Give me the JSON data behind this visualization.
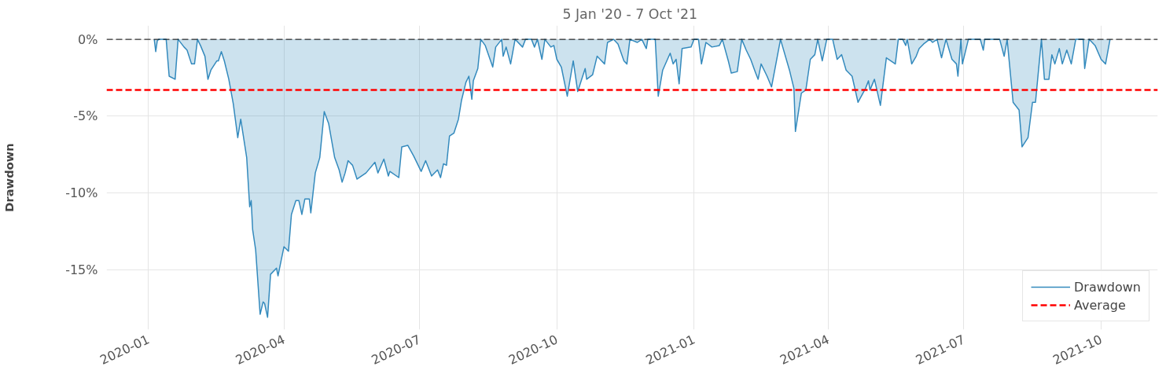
{
  "chart_data": {
    "type": "area",
    "title": "5 Jan '20 -  7 Oct '21",
    "ylabel": "Drawdown",
    "x": [
      "2020-01-05",
      "2020-01-06",
      "2020-01-07",
      "2020-01-08",
      "2020-01-13",
      "2020-01-15",
      "2020-01-19",
      "2020-01-21",
      "2020-01-25",
      "2020-01-27",
      "2020-01-30",
      "2020-02-01",
      "2020-02-03",
      "2020-02-05",
      "2020-02-08",
      "2020-02-10",
      "2020-02-12",
      "2020-02-16",
      "2020-02-17",
      "2020-02-19",
      "2020-02-21",
      "2020-02-24",
      "2020-02-27",
      "2020-03-01",
      "2020-03-03",
      "2020-03-07",
      "2020-03-09",
      "2020-03-10",
      "2020-03-11",
      "2020-03-13",
      "2020-03-16",
      "2020-03-18",
      "2020-03-19",
      "2020-03-21",
      "2020-03-23",
      "2020-03-27",
      "2020-03-28",
      "2020-04-01",
      "2020-04-04",
      "2020-04-06",
      "2020-04-09",
      "2020-04-11",
      "2020-04-13",
      "2020-04-15",
      "2020-04-18",
      "2020-04-19",
      "2020-04-22",
      "2020-04-25",
      "2020-04-28",
      "2020-05-01",
      "2020-05-05",
      "2020-05-08",
      "2020-05-10",
      "2020-05-12",
      "2020-05-14",
      "2020-05-17",
      "2020-05-20",
      "2020-05-26",
      "2020-06-01",
      "2020-06-03",
      "2020-06-07",
      "2020-06-10",
      "2020-06-11",
      "2020-06-17",
      "2020-06-19",
      "2020-06-23",
      "2020-06-27",
      "2020-07-02",
      "2020-07-05",
      "2020-07-09",
      "2020-07-13",
      "2020-07-15",
      "2020-07-17",
      "2020-07-19",
      "2020-07-21",
      "2020-07-24",
      "2020-07-27",
      "2020-07-29",
      "2020-08-01",
      "2020-08-03",
      "2020-08-05",
      "2020-08-06",
      "2020-08-09",
      "2020-08-11",
      "2020-08-14",
      "2020-08-19",
      "2020-08-21",
      "2020-08-25",
      "2020-08-26",
      "2020-08-28",
      "2020-08-31",
      "2020-09-03",
      "2020-09-08",
      "2020-09-10",
      "2020-09-14",
      "2020-09-16",
      "2020-09-18",
      "2020-09-21",
      "2020-09-23",
      "2020-09-27",
      "2020-09-29",
      "2020-10-01",
      "2020-10-04",
      "2020-10-08",
      "2020-10-12",
      "2020-10-15",
      "2020-10-20",
      "2020-10-21",
      "2020-10-25",
      "2020-10-28",
      "2020-11-02",
      "2020-11-04",
      "2020-11-08",
      "2020-11-11",
      "2020-11-15",
      "2020-11-17",
      "2020-11-19",
      "2020-11-24",
      "2020-11-27",
      "2020-11-30",
      "2020-12-01",
      "2020-12-06",
      "2020-12-08",
      "2020-12-11",
      "2020-12-16",
      "2020-12-18",
      "2020-12-20",
      "2020-12-22",
      "2020-12-24",
      "2020-12-30",
      "2021-01-01",
      "2021-01-04",
      "2021-01-06",
      "2021-01-09",
      "2021-01-13",
      "2021-01-18",
      "2021-01-20",
      "2021-01-24",
      "2021-01-26",
      "2021-01-30",
      "2021-02-02",
      "2021-02-05",
      "2021-02-08",
      "2021-02-11",
      "2021-02-13",
      "2021-02-15",
      "2021-02-19",
      "2021-02-22",
      "2021-02-28",
      "2021-03-06",
      "2021-03-09",
      "2021-03-10",
      "2021-03-14",
      "2021-03-17",
      "2021-03-20",
      "2021-03-23",
      "2021-03-25",
      "2021-03-28",
      "2021-03-31",
      "2021-04-04",
      "2021-04-07",
      "2021-04-10",
      "2021-04-13",
      "2021-04-17",
      "2021-04-21",
      "2021-04-26",
      "2021-04-28",
      "2021-04-29",
      "2021-05-02",
      "2021-05-06",
      "2021-05-10",
      "2021-05-16",
      "2021-05-18",
      "2021-05-21",
      "2021-05-23",
      "2021-05-24",
      "2021-05-27",
      "2021-05-30",
      "2021-06-01",
      "2021-06-04",
      "2021-06-08",
      "2021-06-10",
      "2021-06-13",
      "2021-06-16",
      "2021-06-19",
      "2021-06-23",
      "2021-06-26",
      "2021-06-27",
      "2021-06-29",
      "2021-06-30",
      "2021-07-04",
      "2021-07-12",
      "2021-07-14",
      "2021-07-15",
      "2021-07-25",
      "2021-07-28",
      "2021-07-30",
      "2021-08-03",
      "2021-08-07",
      "2021-08-09",
      "2021-08-13",
      "2021-08-16",
      "2021-08-18",
      "2021-08-22",
      "2021-08-24",
      "2021-08-27",
      "2021-08-29",
      "2021-08-31",
      "2021-09-03",
      "2021-09-05",
      "2021-09-08",
      "2021-09-11",
      "2021-09-14",
      "2021-09-19",
      "2021-09-20",
      "2021-09-23",
      "2021-09-27",
      "2021-10-01",
      "2021-10-04",
      "2021-10-07"
    ],
    "series": [
      {
        "name": "Drawdown",
        "color": "#348abd",
        "values": [
          0,
          -0.8,
          -0.1,
          0,
          0,
          -2.4,
          -2.6,
          0,
          -0.5,
          -0.7,
          -1.6,
          -1.6,
          0,
          -0.4,
          -1.1,
          -2.6,
          -2.0,
          -1.4,
          -1.4,
          -0.8,
          -1.4,
          -2.6,
          -4.2,
          -6.4,
          -5.2,
          -7.7,
          -10.9,
          -10.5,
          -12.4,
          -13.7,
          -17.9,
          -17.1,
          -17.2,
          -18.1,
          -15.3,
          -14.9,
          -15.4,
          -13.5,
          -13.8,
          -11.4,
          -10.5,
          -10.5,
          -11.4,
          -10.4,
          -10.4,
          -11.3,
          -8.7,
          -7.7,
          -4.7,
          -5.5,
          -7.7,
          -8.5,
          -9.3,
          -8.7,
          -7.9,
          -8.2,
          -9.1,
          -8.7,
          -8.0,
          -8.7,
          -7.8,
          -8.9,
          -8.6,
          -9.0,
          -7.0,
          -6.9,
          -7.6,
          -8.6,
          -7.9,
          -8.9,
          -8.5,
          -9.0,
          -8.1,
          -8.2,
          -6.3,
          -6.1,
          -5.2,
          -4.0,
          -2.8,
          -2.4,
          -3.9,
          -2.7,
          -1.9,
          0,
          -0.4,
          -1.8,
          -0.5,
          0,
          -1.1,
          -0.5,
          -1.6,
          0,
          -0.5,
          0,
          0,
          -0.5,
          0,
          -1.3,
          0,
          -0.5,
          -0.4,
          -1.3,
          -1.8,
          -3.7,
          -1.4,
          -3.4,
          -1.9,
          -2.6,
          -2.3,
          -1.1,
          -1.6,
          -0.2,
          0,
          -0.3,
          -1.4,
          -1.6,
          0,
          -0.2,
          0,
          -0.6,
          0,
          0,
          -3.7,
          -2.0,
          -0.9,
          -1.6,
          -1.3,
          -2.9,
          -0.6,
          -0.5,
          0,
          0,
          -1.6,
          -0.2,
          -0.5,
          -0.4,
          0,
          -1.4,
          -2.2,
          -2.1,
          0,
          -0.7,
          -1.3,
          -2.1,
          -2.6,
          -1.6,
          -2.4,
          -3.1,
          0,
          -2.0,
          -3.2,
          -6.0,
          -3.5,
          -3.3,
          -1.3,
          -1.0,
          0,
          -1.4,
          0,
          0,
          -1.3,
          -1.0,
          -2.0,
          -2.4,
          -4.1,
          -3.2,
          -2.7,
          -3.3,
          -2.6,
          -4.3,
          -1.2,
          -1.6,
          0,
          0,
          -0.4,
          0,
          -1.6,
          -1.1,
          -0.6,
          -0.3,
          0,
          -0.2,
          0,
          -1.2,
          0,
          -1.3,
          -1.6,
          -2.4,
          0,
          -1.6,
          0,
          0,
          -0.7,
          0,
          0,
          -1.1,
          0,
          -4.1,
          -4.6,
          -7.0,
          -6.4,
          -4.1,
          -4.1,
          0,
          -2.6,
          -2.6,
          -1.0,
          -1.6,
          -0.6,
          -1.6,
          -0.7,
          -1.6,
          0,
          0,
          -1.9,
          0,
          -0.4,
          -1.3,
          -1.6,
          0
        ]
      }
    ],
    "ref_lines": [
      {
        "axis": "y",
        "value": 0,
        "color": "#000000",
        "line_style": "dashed"
      },
      {
        "axis": "y",
        "value": -3.3,
        "label": "Average",
        "color": "#ff0000",
        "line_style": "dashed"
      }
    ],
    "xlim": [
      "2019-12-04",
      "2021-11-08"
    ],
    "xticks": [
      "2020-01",
      "2020-04",
      "2020-07",
      "2020-10",
      "2021-01",
      "2021-04",
      "2021-07",
      "2021-10"
    ],
    "ylim": [
      -18.9,
      0.9
    ],
    "yticks": [
      {
        "value": 0,
        "label": "0%"
      },
      {
        "value": -5,
        "label": "-5%"
      },
      {
        "value": -10,
        "label": "-10%"
      },
      {
        "value": -15,
        "label": "-15%"
      }
    ],
    "grid": true,
    "legend": "bottom right",
    "line_style": "solid"
  }
}
